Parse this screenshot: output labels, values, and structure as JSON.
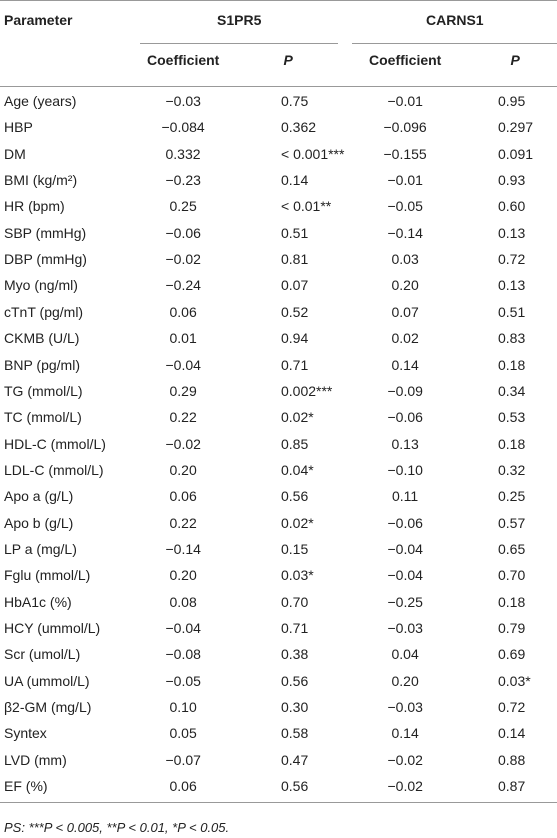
{
  "table": {
    "header": [
      "Parameter",
      "S1PR5",
      "CARNS1"
    ],
    "subheader": [
      "Coefficient",
      "P",
      "Coefficient",
      "P"
    ],
    "rows": [
      [
        "Age (years)",
        "−0.03",
        "0.75",
        "−0.01",
        "0.95"
      ],
      [
        "HBP",
        "−0.084",
        "0.362",
        "−0.096",
        "0.297"
      ],
      [
        "DM",
        "0.332",
        "< 0.001***",
        "−0.155",
        "0.091"
      ],
      [
        "BMI (kg/m²)",
        "−0.23",
        "0.14",
        "−0.01",
        "0.93"
      ],
      [
        "HR (bpm)",
        "0.25",
        "< 0.01**",
        "−0.05",
        "0.60"
      ],
      [
        "SBP (mmHg)",
        "−0.06",
        "0.51",
        "−0.14",
        "0.13"
      ],
      [
        "DBP (mmHg)",
        "−0.02",
        "0.81",
        "0.03",
        "0.72"
      ],
      [
        "Myo (ng/ml)",
        "−0.24",
        "0.07",
        "0.20",
        "0.13"
      ],
      [
        "cTnT (pg/ml)",
        "0.06",
        "0.52",
        "0.07",
        "0.51"
      ],
      [
        "CKMB (U/L)",
        "0.01",
        "0.94",
        "0.02",
        "0.83"
      ],
      [
        "BNP (pg/ml)",
        "−0.04",
        "0.71",
        "0.14",
        "0.18"
      ],
      [
        "TG (mmol/L)",
        "0.29",
        "0.002***",
        "−0.09",
        "0.34"
      ],
      [
        "TC (mmol/L)",
        "0.22",
        "0.02*",
        "−0.06",
        "0.53"
      ],
      [
        "HDL-C (mmol/L)",
        "−0.02",
        "0.85",
        "0.13",
        "0.18"
      ],
      [
        "LDL-C (mmol/L)",
        "0.20",
        "0.04*",
        "−0.10",
        "0.32"
      ],
      [
        "Apo a (g/L)",
        "0.06",
        "0.56",
        "0.11",
        "0.25"
      ],
      [
        "Apo b (g/L)",
        "0.22",
        "0.02*",
        "−0.06",
        "0.57"
      ],
      [
        "LP a (mg/L)",
        "−0.14",
        "0.15",
        "−0.04",
        "0.65"
      ],
      [
        "Fglu (mmol/L)",
        "0.20",
        "0.03*",
        "−0.04",
        "0.70"
      ],
      [
        "HbA1c (%)",
        "0.08",
        "0.70",
        "−0.25",
        "0.18"
      ],
      [
        "HCY (ummol/L)",
        "−0.04",
        "0.71",
        "−0.03",
        "0.79"
      ],
      [
        "Scr (umol/L)",
        "−0.08",
        "0.38",
        "0.04",
        "0.69"
      ],
      [
        "UA (ummol/L)",
        "−0.05",
        "0.56",
        "0.20",
        "0.03*"
      ],
      [
        "β2-GM (mg/L)",
        "0.10",
        "0.30",
        "−0.03",
        "0.72"
      ],
      [
        "Syntex",
        "0.05",
        "0.58",
        "0.14",
        "0.14"
      ],
      [
        "LVD (mm)",
        "−0.07",
        "0.47",
        "−0.02",
        "0.88"
      ],
      [
        "EF (%)",
        "0.06",
        "0.56",
        "−0.02",
        "0.87"
      ]
    ]
  },
  "footnote": "PS: ***P < 0.005, **P < 0.01, *P < 0.05."
}
